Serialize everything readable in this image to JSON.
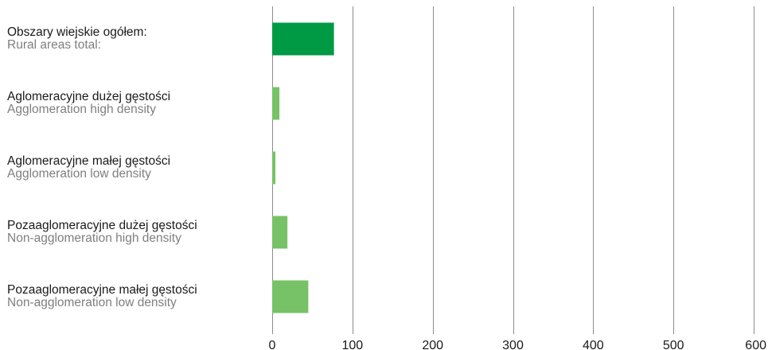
{
  "chart_data": {
    "type": "bar",
    "orientation": "horizontal",
    "categories": [
      {
        "label_pl": "Obszary wiejskie ogółem:",
        "label_en": "Rural areas total:",
        "value": 77,
        "color": "#009a44"
      },
      {
        "label_pl": "Aglomeracyjne dużej gęstości",
        "label_en": "Agglomeration high density",
        "value": 9,
        "color": "#77c266"
      },
      {
        "label_pl": "Aglomeracyjne małej gęstości",
        "label_en": "Agglomeration low density",
        "value": 4,
        "color": "#77c266"
      },
      {
        "label_pl": "Pozaaglomeracyjne dużej gęstości",
        "label_en": "Non-agglomeration high density",
        "value": 19,
        "color": "#77c266"
      },
      {
        "label_pl": "Pozaaglomeracyjne małej gęstości",
        "label_en": "Non-agglomeration low density",
        "value": 45,
        "color": "#77c266"
      }
    ],
    "xlim": [
      0,
      600
    ],
    "xticks": [
      "0",
      "100",
      "200",
      "300",
      "400",
      "500",
      "600"
    ],
    "grid": "vertical",
    "legend": "none"
  }
}
